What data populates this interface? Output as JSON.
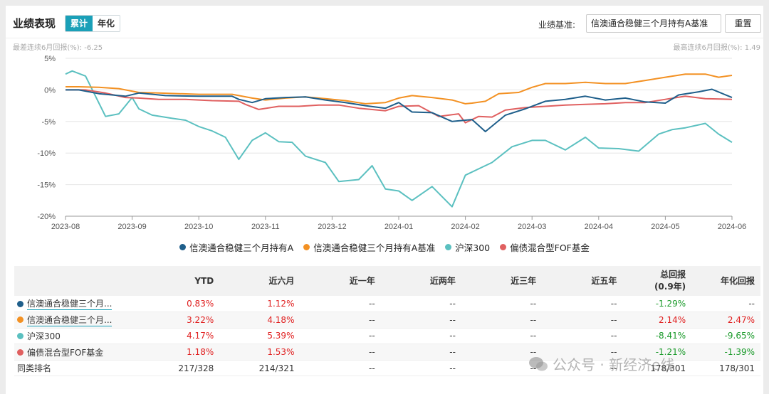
{
  "header": {
    "title": "业绩表现",
    "tabs": [
      "累计",
      "年化"
    ],
    "benchmark_label": "业绩基准:",
    "benchmark_value": "信澳通合稳健三个月持有A基准",
    "reset_label": "重置",
    "worst_label": "最差连续6月回报(%): -6.25",
    "best_label": "最高连续6月回报(%): 1.49"
  },
  "chart_data": {
    "type": "line",
    "x_ticks": [
      "2023-08",
      "2023-09",
      "2023-10",
      "2023-11",
      "2023-12",
      "2024-01",
      "2024-02",
      "2024-03",
      "2024-04",
      "2024-05",
      "2024-06"
    ],
    "y_ticks": [
      "5%",
      "0%",
      "-5%",
      "-10%",
      "-15%",
      "-20%"
    ],
    "ylim": [
      -20,
      5
    ],
    "xlim": [
      0,
      10
    ],
    "series": [
      {
        "name": "信澳通合稳健三个月持有A",
        "color": "#1f5f8b",
        "x": [
          0,
          0.2,
          0.5,
          0.9,
          1.1,
          1.5,
          2.0,
          2.5,
          2.6,
          2.8,
          3.0,
          3.3,
          3.6,
          3.9,
          4.2,
          4.5,
          4.8,
          5.0,
          5.2,
          5.5,
          5.8,
          6.1,
          6.3,
          6.6,
          6.9,
          7.2,
          7.5,
          7.8,
          8.1,
          8.4,
          8.7,
          9.0,
          9.2,
          9.5,
          9.7,
          10.0
        ],
        "y": [
          0,
          0,
          -0.6,
          -1,
          -0.5,
          -0.9,
          -1,
          -1,
          -1.5,
          -2,
          -1.4,
          -1.2,
          -1.1,
          -1.6,
          -2,
          -2.5,
          -2.9,
          -2,
          -3.5,
          -3.6,
          -5,
          -4.7,
          -6.6,
          -4,
          -3,
          -1.8,
          -1.5,
          -1,
          -1.6,
          -1.3,
          -1.9,
          -2.1,
          -0.8,
          -0.3,
          0.1,
          -1.2
        ]
      },
      {
        "name": "信澳通合稳健三个月持有A基准",
        "color": "#f39123",
        "x": [
          0,
          0.2,
          0.5,
          0.8,
          1.1,
          1.4,
          2.0,
          2.5,
          2.8,
          3.0,
          3.3,
          3.6,
          3.9,
          4.2,
          4.5,
          4.8,
          5.0,
          5.2,
          5.5,
          5.8,
          6.0,
          6.1,
          6.3,
          6.5,
          6.8,
          7.0,
          7.2,
          7.5,
          7.8,
          8.1,
          8.4,
          8.7,
          9.0,
          9.3,
          9.6,
          9.8,
          10.0
        ],
        "y": [
          0.5,
          0.5,
          0.4,
          0.2,
          -0.4,
          -0.5,
          -0.7,
          -0.7,
          -1.3,
          -1.6,
          -1.3,
          -1.1,
          -1.4,
          -1.7,
          -2.2,
          -2,
          -1.3,
          -0.9,
          -1.2,
          -1.6,
          -2.2,
          -2.1,
          -1.8,
          -0.6,
          -0.4,
          0.4,
          1,
          1,
          1.2,
          1,
          1,
          1.5,
          2,
          2.5,
          2.5,
          2,
          2.3
        ]
      },
      {
        "name": "沪深300",
        "color": "#5bc0c0",
        "x": [
          0,
          0.1,
          0.3,
          0.6,
          0.8,
          1.0,
          1.1,
          1.3,
          1.6,
          1.8,
          2.0,
          2.2,
          2.4,
          2.6,
          2.8,
          3.0,
          3.2,
          3.4,
          3.6,
          3.9,
          4.1,
          4.4,
          4.6,
          4.8,
          5.0,
          5.2,
          5.5,
          5.8,
          6.0,
          6.2,
          6.4,
          6.7,
          7.0,
          7.2,
          7.5,
          7.8,
          8.0,
          8.3,
          8.6,
          8.9,
          9.1,
          9.3,
          9.6,
          9.8,
          10.0
        ],
        "y": [
          2.5,
          3,
          2.2,
          -4.2,
          -3.8,
          -1.2,
          -3,
          -4,
          -4.5,
          -4.8,
          -5.8,
          -6.5,
          -7.5,
          -11,
          -8,
          -6.8,
          -8.2,
          -8.3,
          -10.5,
          -11.5,
          -14.5,
          -14.2,
          -12,
          -15.7,
          -16,
          -17.5,
          -15.3,
          -18.5,
          -13.5,
          -12.5,
          -11.5,
          -9,
          -8,
          -8,
          -9.5,
          -7.5,
          -9.2,
          -9.3,
          -9.7,
          -7,
          -6.3,
          -6,
          -5.3,
          -7,
          -8.3
        ]
      },
      {
        "name": "偏债混合型FOF基金",
        "color": "#e06060",
        "x": [
          0,
          0.3,
          0.6,
          0.9,
          1.1,
          1.4,
          1.8,
          2.2,
          2.6,
          2.7,
          2.9,
          3.2,
          3.5,
          3.8,
          4.1,
          4.4,
          4.8,
          5.0,
          5.3,
          5.6,
          5.9,
          6.0,
          6.2,
          6.4,
          6.6,
          6.9,
          7.2,
          7.5,
          7.8,
          8.1,
          8.4,
          8.7,
          9.0,
          9.3,
          9.6,
          10.0
        ],
        "y": [
          0,
          0,
          -0.5,
          -1.2,
          -1.3,
          -1.5,
          -1.5,
          -1.7,
          -1.8,
          -2.3,
          -3.1,
          -2.6,
          -2.6,
          -2.4,
          -2.4,
          -2.9,
          -3.3,
          -2.6,
          -2.5,
          -4.2,
          -3.8,
          -5.2,
          -4.2,
          -4.3,
          -3.2,
          -2.8,
          -2.6,
          -2.4,
          -2.3,
          -2.2,
          -2,
          -2,
          -1.5,
          -1,
          -1.4,
          -1.5
        ]
      }
    ]
  },
  "table": {
    "headers": [
      "",
      "YTD",
      "近六月",
      "近一年",
      "近两年",
      "近三年",
      "近五年",
      "总回报\n(0.9年)",
      "年化回报"
    ],
    "rows": [
      {
        "name": "信澳通合稳健三个月...",
        "color": "#1f5f8b",
        "cells": [
          "0.83%",
          "1.12%",
          "--",
          "--",
          "--",
          "--",
          "-1.29%",
          "--"
        ],
        "cls": [
          "red",
          "red",
          "",
          "",
          "",
          "",
          "green",
          ""
        ]
      },
      {
        "name": "信澳通合稳健三个月...",
        "color": "#f39123",
        "cells": [
          "3.22%",
          "4.18%",
          "--",
          "--",
          "--",
          "--",
          "2.14%",
          "2.47%"
        ],
        "cls": [
          "red",
          "red",
          "",
          "",
          "",
          "",
          "red",
          "red"
        ]
      },
      {
        "name": "沪深300",
        "color": "#5bc0c0",
        "cells": [
          "4.17%",
          "5.39%",
          "--",
          "--",
          "--",
          "--",
          "-8.41%",
          "-9.65%"
        ],
        "cls": [
          "red",
          "red",
          "",
          "",
          "",
          "",
          "green",
          "green"
        ]
      },
      {
        "name": "偏债混合型FOF基金",
        "color": "#e06060",
        "cells": [
          "1.18%",
          "1.53%",
          "--",
          "--",
          "--",
          "--",
          "-1.21%",
          "-1.39%"
        ],
        "cls": [
          "red",
          "red",
          "",
          "",
          "",
          "",
          "green",
          "green"
        ]
      },
      {
        "name": "同类排名",
        "color": "",
        "cells": [
          "217/328",
          "214/321",
          "--",
          "--",
          "--",
          "--",
          "178/301",
          "178/301"
        ],
        "cls": [
          "",
          "",
          "",
          "",
          "",
          "",
          "",
          ""
        ]
      }
    ]
  },
  "watermark": "公众号 · 新经济e线"
}
